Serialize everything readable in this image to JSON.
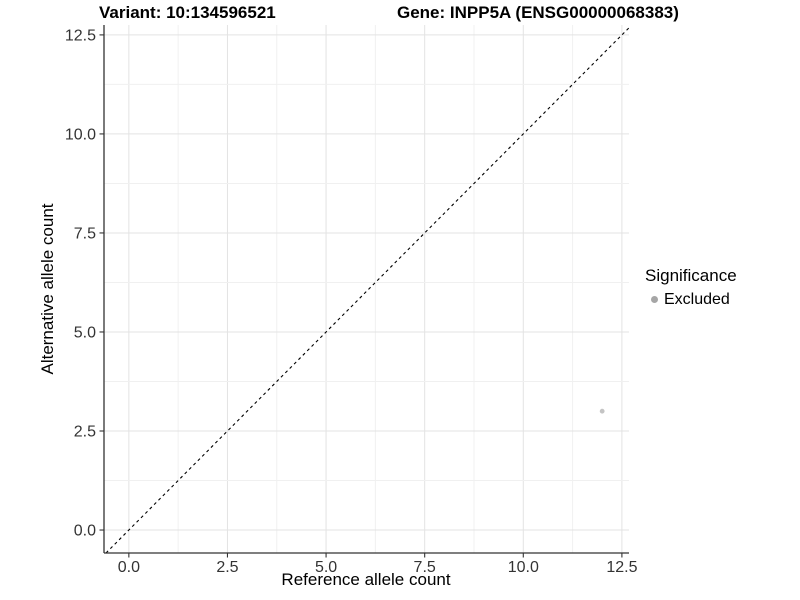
{
  "chart_data": {
    "type": "scatter",
    "titles": {
      "left": "Variant: 10:134596521",
      "right": "Gene: INPP5A (ENSG00000068383)"
    },
    "xlabel": "Reference allele count",
    "ylabel": "Alternative allele count",
    "x_ticks": [
      0,
      2.5,
      5,
      7.5,
      10,
      12.5
    ],
    "y_ticks": [
      0,
      2.5,
      5,
      7.5,
      10,
      12.5
    ],
    "tick_decimals": 1,
    "minor_step": 1.25,
    "xlim": [
      -0.63,
      12.68
    ],
    "ylim": [
      -0.58,
      12.75
    ],
    "grid": true,
    "points": [
      {
        "x": 12,
        "y": 3,
        "significance": "Excluded"
      }
    ],
    "series": [
      {
        "name": "Excluded",
        "color": "#c4c4c4"
      }
    ],
    "reference_line": {
      "type": "identity",
      "equation": "y = x",
      "style": "dashed",
      "color": "#000000"
    },
    "legend": {
      "title": "Significance",
      "position": "right",
      "items": [
        {
          "label": "Excluded",
          "marker_color": "#a6a6a6"
        }
      ]
    }
  },
  "colors": {
    "axis": "#333333",
    "grid_major": "#e3e3e3",
    "grid_minor": "#f0f0f0",
    "tick_label": "#333333",
    "background": "#ffffff"
  }
}
